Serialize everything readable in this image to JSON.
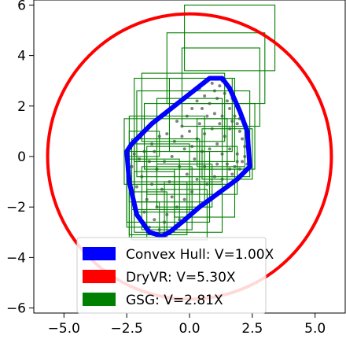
{
  "chart_data": {
    "type": "scatter",
    "title": "",
    "xlabel": "",
    "ylabel": "",
    "xlim": [
      -6.2,
      6.2
    ],
    "ylim": [
      -6.2,
      6.2
    ],
    "xticks": [
      -5.0,
      -2.5,
      0.0,
      2.5,
      5.0
    ],
    "xtick_labels": [
      "−5.0",
      "−2.5",
      "0.0",
      "2.5",
      "5.0"
    ],
    "yticks": [
      -6,
      -4,
      -2,
      0,
      2,
      4,
      6
    ],
    "ytick_labels": [
      "−6",
      "−4",
      "−2",
      "0",
      "2",
      "4",
      "6"
    ],
    "grid": false,
    "legend_position": "bottom-center",
    "legend": [
      {
        "label": "Convex Hull: V=1.00X",
        "color": "#0000ff"
      },
      {
        "label": "DryVR: V=5.30X",
        "color": "#ff0000"
      },
      {
        "label": "GSG: V=2.81X",
        "color": "#008000"
      }
    ],
    "circle": {
      "name": "DryVR",
      "color": "#ff0000",
      "cx": 0.0,
      "cy": 0.0,
      "r": 5.65
    },
    "hull": {
      "name": "Convex Hull",
      "color": "#0000ff",
      "points": [
        [
          0.8,
          3.1
        ],
        [
          1.3,
          3.1
        ],
        [
          1.6,
          2.7
        ],
        [
          2.0,
          1.8
        ],
        [
          2.3,
          1.0
        ],
        [
          2.4,
          -0.4
        ],
        [
          1.9,
          -0.9
        ],
        [
          0.4,
          -2.0
        ],
        [
          -0.3,
          -2.6
        ],
        [
          -0.8,
          -3.0
        ],
        [
          -1.1,
          -3.15
        ],
        [
          -1.6,
          -3.0
        ],
        [
          -2.1,
          -2.3
        ],
        [
          -2.4,
          -1.0
        ],
        [
          -2.5,
          0.2
        ],
        [
          -2.3,
          0.5
        ],
        [
          -1.5,
          1.3
        ]
      ]
    },
    "boxes": {
      "name": "GSG",
      "color": "#008000",
      "rects": [
        [
          -0.2,
          3.4,
          3.4,
          6.0
        ],
        [
          -0.9,
          2.1,
          3.0,
          4.9
        ],
        [
          -0.3,
          1.2,
          2.8,
          4.3
        ],
        [
          -1.9,
          0.6,
          1.4,
          3.3
        ],
        [
          -0.8,
          0.2,
          1.7,
          3.1
        ],
        [
          -2.2,
          -0.2,
          1.8,
          3.1
        ],
        [
          -2.1,
          -0.8,
          2.4,
          2.6
        ],
        [
          -1.8,
          -0.5,
          2.6,
          2.1
        ],
        [
          -1.3,
          -1.1,
          1.3,
          2.3
        ],
        [
          0.3,
          -0.4,
          2.2,
          1.5
        ],
        [
          0.5,
          -0.9,
          2.5,
          1.1
        ],
        [
          -2.4,
          -1.8,
          0.6,
          1.6
        ],
        [
          -2.6,
          -1.1,
          1.5,
          1.5
        ],
        [
          -2.4,
          0.0,
          -1.2,
          1.0
        ],
        [
          -2.3,
          -2.1,
          0.4,
          0.7
        ],
        [
          -1.7,
          -1.5,
          1.9,
          0.4
        ],
        [
          -2.2,
          -2.2,
          0.0,
          0.5
        ],
        [
          -2.5,
          -2.6,
          0.8,
          0.2
        ],
        [
          -1.9,
          -2.9,
          0.1,
          -0.4
        ],
        [
          -2.2,
          -3.0,
          -0.6,
          -0.6
        ],
        [
          -2.4,
          -3.1,
          -0.1,
          -1.0
        ],
        [
          -2.4,
          -3.2,
          -0.9,
          -1.4
        ],
        [
          -1.7,
          -3.3,
          0.7,
          -1.3
        ],
        [
          -1.0,
          -3.0,
          1.3,
          -1.0
        ],
        [
          -2.3,
          -3.3,
          -1.2,
          -1.8
        ],
        [
          -1.3,
          -2.0,
          0.9,
          -0.3
        ],
        [
          -0.6,
          -2.4,
          1.8,
          -0.5
        ],
        [
          -2.5,
          -2.8,
          -0.4,
          -0.1
        ]
      ]
    },
    "scatter": {
      "name": "samples",
      "color": "#808080",
      "points": [
        [
          0.4,
          2.7
        ],
        [
          0.6,
          2.4
        ],
        [
          0.8,
          2.1
        ],
        [
          1.0,
          2.6
        ],
        [
          1.1,
          2.3
        ],
        [
          1.2,
          2.8
        ],
        [
          1.4,
          2.5
        ],
        [
          1.5,
          2.2
        ],
        [
          1.6,
          1.9
        ],
        [
          1.7,
          2.3
        ],
        [
          1.8,
          1.6
        ],
        [
          1.9,
          1.3
        ],
        [
          2.0,
          1.0
        ],
        [
          2.1,
          0.7
        ],
        [
          2.2,
          0.4
        ],
        [
          2.2,
          0.0
        ],
        [
          2.3,
          -0.3
        ],
        [
          2.0,
          -0.5
        ],
        [
          1.7,
          -0.7
        ],
        [
          1.9,
          -0.2
        ],
        [
          1.6,
          0.3
        ],
        [
          1.4,
          0.8
        ],
        [
          1.2,
          1.3
        ],
        [
          1.0,
          1.7
        ],
        [
          0.7,
          1.6
        ],
        [
          0.5,
          1.9
        ],
        [
          0.3,
          2.2
        ],
        [
          0.1,
          1.9
        ],
        [
          -0.1,
          1.6
        ],
        [
          -0.3,
          1.2
        ],
        [
          -0.5,
          1.4
        ],
        [
          0.0,
          1.0
        ],
        [
          0.3,
          0.7
        ],
        [
          0.6,
          0.9
        ],
        [
          0.9,
          1.1
        ],
        [
          1.1,
          0.5
        ],
        [
          1.3,
          0.1
        ],
        [
          1.5,
          -0.3
        ],
        [
          1.8,
          -0.4
        ],
        [
          2.1,
          -0.2
        ],
        [
          1.6,
          1.1
        ],
        [
          1.3,
          1.6
        ],
        [
          0.8,
          0.3
        ],
        [
          0.5,
          0.2
        ],
        [
          0.2,
          -0.1
        ],
        [
          -0.2,
          0.3
        ],
        [
          -0.6,
          0.6
        ],
        [
          -0.9,
          0.9
        ],
        [
          -1.2,
          0.8
        ],
        [
          -1.5,
          0.5
        ],
        [
          -1.8,
          0.2
        ],
        [
          -2.0,
          -0.1
        ],
        [
          -2.2,
          0.1
        ],
        [
          -1.6,
          -0.2
        ],
        [
          -1.3,
          -0.5
        ],
        [
          -1.0,
          -0.2
        ],
        [
          -0.7,
          0.0
        ],
        [
          -0.4,
          -0.4
        ],
        [
          -0.1,
          -0.7
        ],
        [
          0.3,
          -0.9
        ],
        [
          0.7,
          -1.1
        ],
        [
          1.0,
          -0.8
        ],
        [
          1.3,
          -0.9
        ],
        [
          -0.8,
          -1.0
        ],
        [
          -1.1,
          -1.3
        ],
        [
          -1.5,
          -1.1
        ],
        [
          -1.9,
          -0.8
        ],
        [
          -2.1,
          -1.2
        ],
        [
          -1.7,
          -1.7
        ],
        [
          -1.3,
          -2.0
        ],
        [
          -0.9,
          -2.3
        ],
        [
          -0.5,
          -2.0
        ],
        [
          -0.2,
          -1.7
        ],
        [
          0.1,
          -1.4
        ],
        [
          -0.7,
          -1.6
        ],
        [
          -1.0,
          -2.6
        ],
        [
          -1.4,
          -2.5
        ],
        [
          -1.8,
          -2.2
        ],
        [
          -0.4,
          -2.5
        ],
        [
          -1.2,
          -2.9
        ],
        [
          -1.6,
          -2.8
        ],
        [
          0.9,
          2.9
        ],
        [
          1.3,
          3.0
        ],
        [
          0.6,
          2.9
        ],
        [
          1.9,
          0.1
        ],
        [
          2.2,
          -0.5
        ],
        [
          1.6,
          -0.5
        ],
        [
          2.0,
          1.5
        ],
        [
          1.7,
          1.4
        ],
        [
          0.4,
          1.3
        ],
        [
          -0.3,
          0.8
        ],
        [
          0.1,
          0.4
        ],
        [
          1.1,
          -0.3
        ],
        [
          0.6,
          -0.4
        ],
        [
          -1.4,
          0.2
        ],
        [
          -2.3,
          -0.4
        ]
      ]
    }
  }
}
